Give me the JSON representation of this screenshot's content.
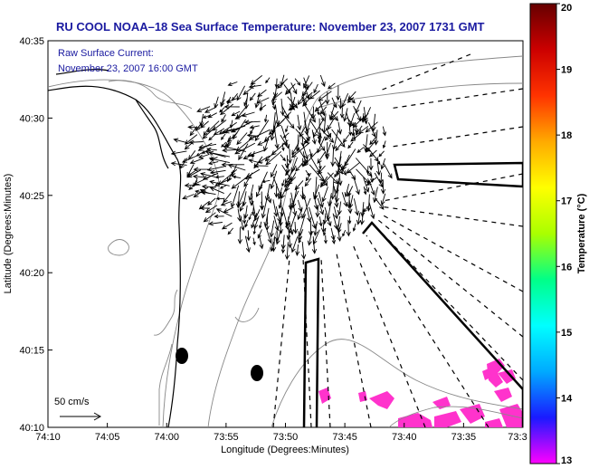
{
  "chart_data": {
    "type": "map",
    "title": "RU COOL  NOAA–18  Sea Surface Temperature:  November 23, 2007 1731 GMT",
    "annotation_lines": [
      "Raw Surface Current:",
      "November 23, 2007 16:00 GMT"
    ],
    "scale_label": "50 cm/s",
    "xlabel": "Longitude (Degrees:Minutes)",
    "ylabel": "Latitude (Degrees:Minutes)",
    "x_ticks": [
      "74:10",
      "74:05",
      "74:00",
      "73:55",
      "73:50",
      "73:45",
      "73:40",
      "73:35",
      "73:3"
    ],
    "y_ticks": [
      "40:10",
      "40:15",
      "40:20",
      "40:25",
      "40:30",
      "40:35"
    ],
    "x_range_minutes_west": [
      10,
      -30
    ],
    "y_range_minutes_north": [
      10,
      35
    ],
    "colorbar": {
      "label": "Temperature (°C)",
      "range": [
        13,
        20
      ],
      "ticks": [
        "13",
        "14",
        "15",
        "16",
        "17",
        "18",
        "19",
        "20"
      ],
      "colors": [
        "#ff00ff",
        "#1a1aff",
        "#00aaff",
        "#00ffff",
        "#00ff88",
        "#aaff00",
        "#ffff00",
        "#ffaa00",
        "#ff3300",
        "#cc0000",
        "#660000"
      ]
    },
    "sst_patch_color": "#ff33cc",
    "vector_field": {
      "type": "quiver",
      "color": "#000000"
    }
  }
}
